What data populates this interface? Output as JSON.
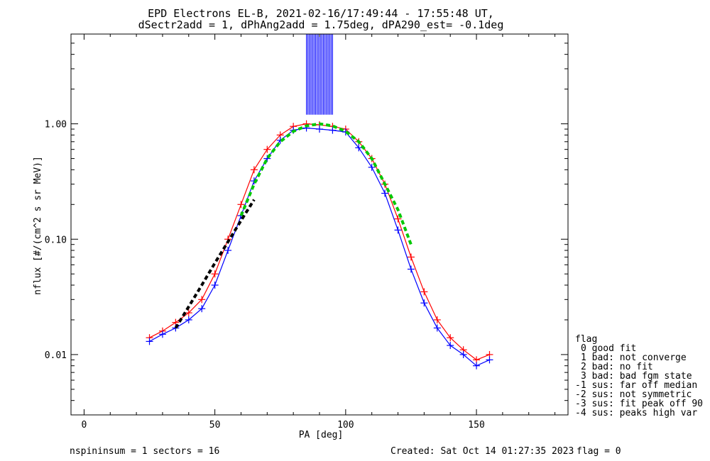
{
  "chart_data": {
    "type": "line",
    "title_line1": "EPD Electrons EL-B, 2021-02-16/17:49:44 - 17:55:48 UT,",
    "title_line2": "dSectr2add = 1, dPhAng2add = 1.75deg, dPA290_est=  -0.1deg",
    "xlabel": "PA [deg]",
    "ylabel": "nflux [#/(cm^2 s sr MeV)]",
    "xlim": [
      -5,
      185
    ],
    "ylim": [
      0.003,
      6
    ],
    "yscale": "log",
    "xticks": [
      0,
      50,
      100,
      150
    ],
    "xtick_labels": [
      "0",
      "50",
      "100",
      "150"
    ],
    "yticks": [
      0.01,
      0.1,
      1.0
    ],
    "ytick_labels": [
      "0.01",
      "0.10",
      "1.00"
    ],
    "series": [
      {
        "color": "#ff0000",
        "marker": "+",
        "x": [
          25,
          30,
          35,
          40,
          45,
          50,
          55,
          60,
          65,
          70,
          75,
          80,
          85,
          90,
          95,
          100,
          105,
          110,
          115,
          120,
          125,
          130,
          135,
          140,
          145,
          150,
          155
        ],
        "y": [
          0.014,
          0.016,
          0.019,
          0.023,
          0.03,
          0.05,
          0.1,
          0.2,
          0.4,
          0.6,
          0.8,
          0.95,
          1.0,
          0.98,
          0.95,
          0.9,
          0.7,
          0.5,
          0.3,
          0.15,
          0.07,
          0.035,
          0.02,
          0.014,
          0.011,
          0.009,
          0.01
        ]
      },
      {
        "color": "#0000ff",
        "marker": "+",
        "x": [
          25,
          30,
          35,
          40,
          45,
          50,
          55,
          60,
          65,
          70,
          75,
          80,
          85,
          90,
          95,
          100,
          105,
          110,
          115,
          120,
          125,
          130,
          135,
          140,
          145,
          150,
          155
        ],
        "y": [
          0.013,
          0.015,
          0.017,
          0.02,
          0.025,
          0.04,
          0.08,
          0.16,
          0.32,
          0.5,
          0.72,
          0.88,
          0.92,
          0.9,
          0.88,
          0.85,
          0.62,
          0.42,
          0.25,
          0.12,
          0.055,
          0.028,
          0.017,
          0.012,
          0.01,
          0.008,
          0.009
        ]
      },
      {
        "color": "#00c800",
        "style": "dashed",
        "x": [
          60,
          65,
          70,
          75,
          80,
          85,
          90,
          95,
          100,
          105,
          110,
          115,
          120,
          125
        ],
        "y": [
          0.16,
          0.3,
          0.5,
          0.7,
          0.86,
          0.96,
          1.0,
          0.96,
          0.86,
          0.7,
          0.5,
          0.3,
          0.18,
          0.09
        ]
      },
      {
        "color": "#000000",
        "style": "dashed",
        "x": [
          35,
          40,
          45,
          50,
          55,
          60,
          65
        ],
        "y": [
          0.017,
          0.026,
          0.04,
          0.062,
          0.095,
          0.145,
          0.22
        ]
      }
    ],
    "spikes": {
      "color": "#0000ff",
      "x_from": 85,
      "x_to": 95,
      "y_from": 1.2
    },
    "legend": {
      "title": "flag",
      "entries": [
        "0 good fit",
        "1 bad: not converge",
        "2 bad: no fit",
        "3 bad: bad fgm state",
        "-1 sus: far off median",
        "-2 sus: not symmetric",
        "-3 sus: fit peak off 90",
        "-4 sus: peaks high var"
      ]
    }
  },
  "footer": {
    "left": "nspininsum =  1  sectors = 16",
    "created": "Created: Sat Oct 14 01:27:35 2023",
    "flag": "flag = 0"
  }
}
